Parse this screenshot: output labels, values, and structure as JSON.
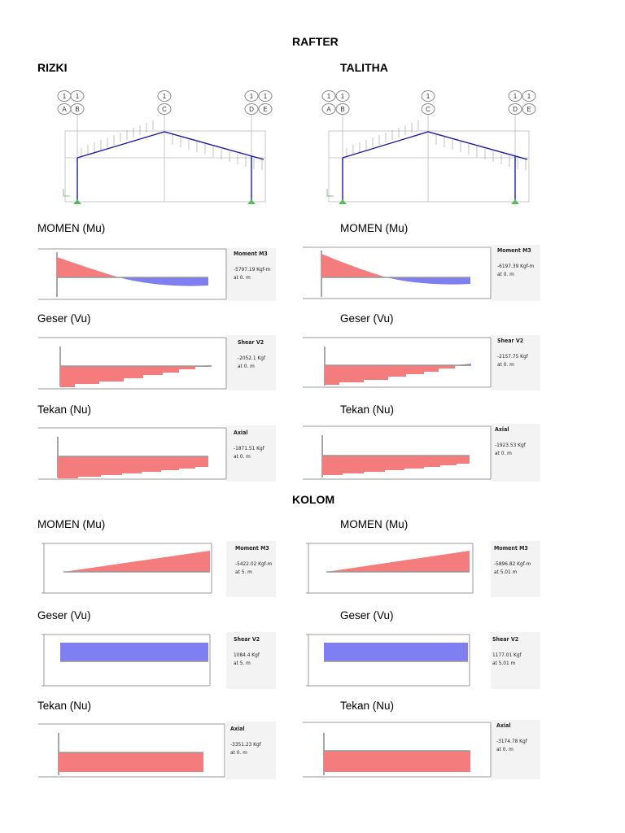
{
  "rafter": {
    "heading": "RAFTER",
    "left": {
      "name": "RIZKI",
      "frame_grid": {
        "top": [
          "1",
          "1",
          "1",
          "1",
          "1"
        ],
        "letters": [
          "A",
          "B",
          "C",
          "D",
          "E"
        ]
      },
      "moment": {
        "label": "MOMEN (Mu)",
        "title": "Moment M3",
        "value": "-5797.19 Kgf-m",
        "at": "at 0. m"
      },
      "shear": {
        "label": "Geser (Vu)",
        "title": "Shear V2",
        "value": "-2052.1 Kgf",
        "at": "at 0. m"
      },
      "axial": {
        "label": "Tekan (Nu)",
        "title": "Axial",
        "value": "-1871.51 Kgf",
        "at": "at 0. m"
      }
    },
    "right": {
      "name": "TALITHA",
      "frame_grid": {
        "top": [
          "1",
          "1",
          "1",
          "1",
          "1"
        ],
        "letters": [
          "A",
          "B",
          "C",
          "D",
          "E"
        ]
      },
      "moment": {
        "label": "MOMEN (Mu)",
        "title": "Moment M3",
        "value": "-6197.39 Kgf-m",
        "at": "at 0. m"
      },
      "shear": {
        "label": "Geser (Vu)",
        "title": "Shear V2",
        "value": "-2157.75 Kgf",
        "at": "at 0. m"
      },
      "axial": {
        "label": "Tekan (Nu)",
        "title": "Axial",
        "value": "-1923.53 Kgf",
        "at": "at 0. m"
      }
    }
  },
  "kolom": {
    "heading": "KOLOM",
    "left": {
      "moment": {
        "label": "MOMEN (Mu)",
        "title": "Moment M3",
        "value": "-5422.02 Kgf-m",
        "at": "at 5. m"
      },
      "shear": {
        "label": "Geser (Vu)",
        "title": "Shear V2",
        "value": "1084.4 Kgf",
        "at": "at 5. m"
      },
      "axial": {
        "label": "Tekan (Nu)",
        "title": "Axial",
        "value": "-3351.23 Kgf",
        "at": "at 0. m"
      }
    },
    "right": {
      "moment": {
        "label": "MOMEN (Mu)",
        "title": "Moment M3",
        "value": "-5896.82 Kgf-m",
        "at": "at 5.01 m"
      },
      "shear": {
        "label": "Geser (Vu)",
        "title": "Shear V2",
        "value": "1177.01 Kgf",
        "at": "at 5.01 m"
      },
      "axial": {
        "label": "Tekan (Nu)",
        "title": "Axial",
        "value": "-3174.78 Kgf",
        "at": "at 0. m"
      }
    }
  },
  "colors": {
    "positive": "#f47c7c",
    "negative": "#7f7ff2",
    "axis": "#888888",
    "panel": "#f3f3f3"
  }
}
